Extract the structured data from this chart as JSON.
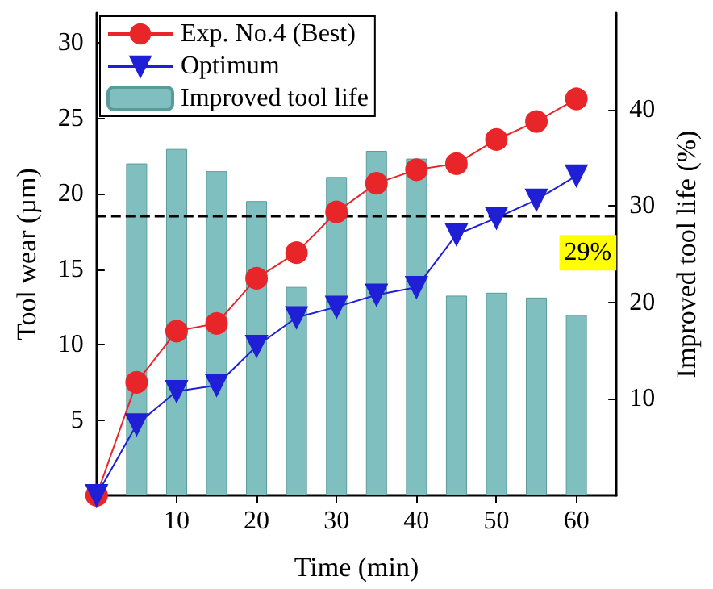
{
  "chart_data": {
    "type": "line",
    "xlabel": "Time (min)",
    "ylabel": "Tool wear (µm)",
    "y2label": "Improved tool life (%)",
    "xlim": [
      0,
      65
    ],
    "xticks": [
      10,
      20,
      30,
      40,
      50,
      60
    ],
    "ylim": [
      0,
      32
    ],
    "yticks": [
      5,
      10,
      15,
      20,
      25,
      30
    ],
    "y2lim": [
      0,
      50
    ],
    "y2ticks": [
      10,
      20,
      30,
      40
    ],
    "grid": false,
    "legend": "top left",
    "line_style": "solid",
    "series": [
      {
        "name": "Exp. No.4 (Best)",
        "color": "#e8262a",
        "marker": "circle",
        "x": [
          0,
          5,
          10,
          15,
          20,
          25,
          30,
          35,
          40,
          45,
          50,
          55,
          60
        ],
        "values": [
          0,
          7.5,
          10.9,
          11.4,
          14.4,
          16.1,
          18.8,
          20.7,
          21.6,
          22.0,
          23.6,
          24.8,
          26.3
        ]
      },
      {
        "name": "Optimum",
        "color": "#1f1fd6",
        "marker": "triangle",
        "x": [
          0,
          5,
          10,
          15,
          20,
          25,
          30,
          35,
          40,
          45,
          50,
          55,
          60
        ],
        "values": [
          0,
          4.7,
          6.9,
          7.3,
          9.9,
          11.8,
          12.5,
          13.3,
          13.8,
          17.3,
          18.4,
          19.6,
          21.2
        ]
      },
      {
        "name": "Improved tool life",
        "type": "bar",
        "axis": "y2",
        "color": "#7fbfbf",
        "x": [
          5,
          10,
          15,
          20,
          25,
          30,
          35,
          40,
          45,
          50,
          55,
          60
        ],
        "values": [
          34.4,
          35.9,
          33.6,
          30.5,
          21.6,
          33.0,
          35.7,
          34.9,
          20.7,
          21.0,
          20.5,
          18.7
        ]
      }
    ],
    "ref_lines": [
      {
        "axis": "y2",
        "value": 29,
        "label": "29%",
        "color": "#000000",
        "line_style": "dashed"
      }
    ]
  }
}
